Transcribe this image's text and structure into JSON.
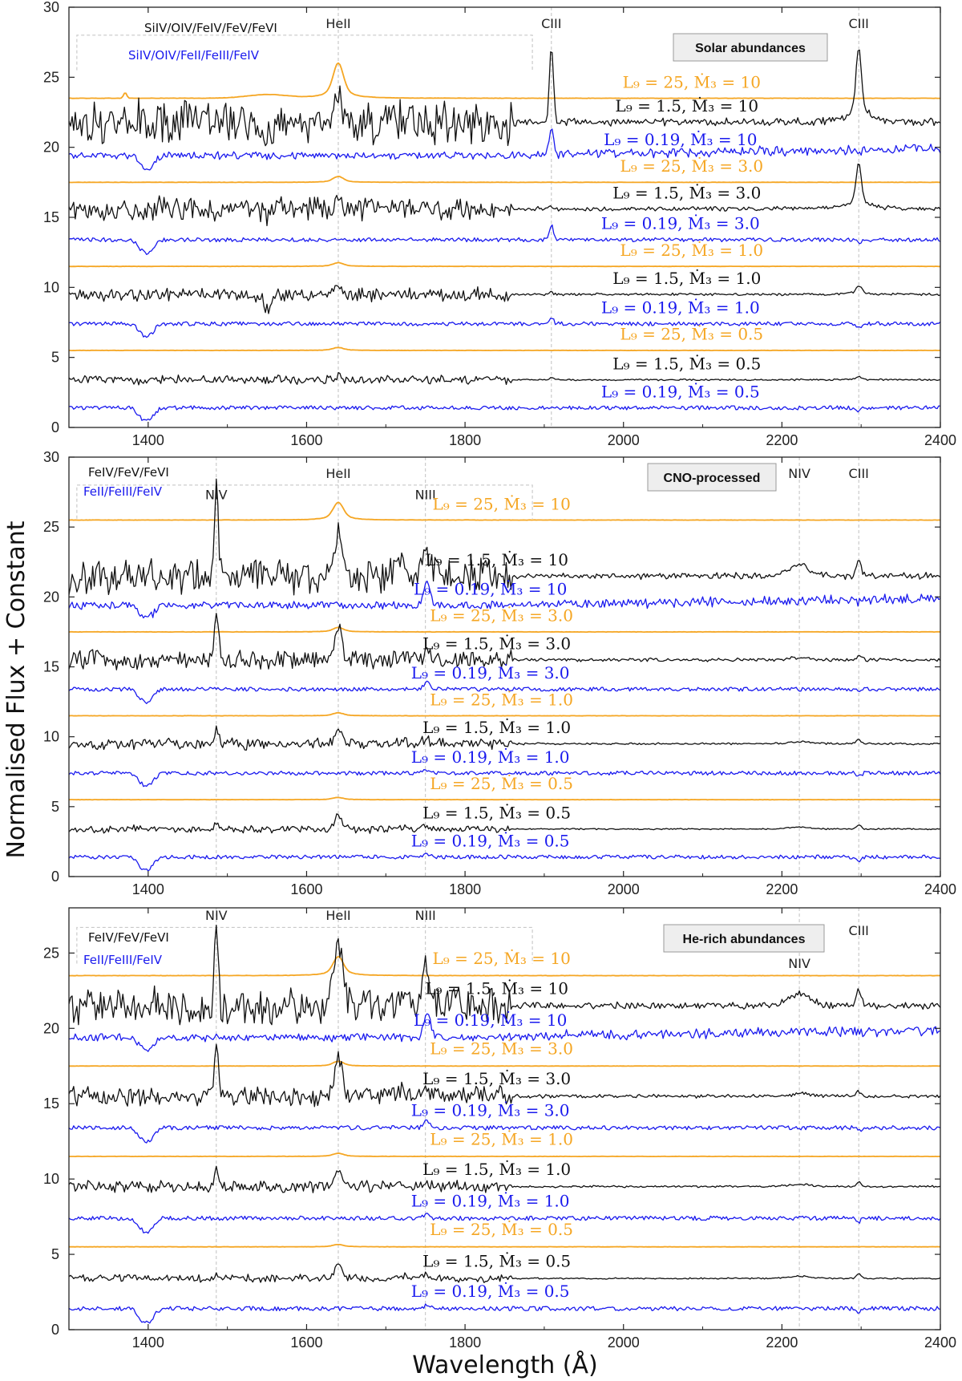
{
  "figure": {
    "ylabel": "Normalised Flux + Constant",
    "xlabel": "Wavelength (Å)"
  },
  "colors": {
    "L9_25": "#f5a623",
    "L9_1.5": "#111111",
    "L9_0.19": "#1a1aee",
    "guide": "#c0c0c0"
  },
  "chart_data": [
    {
      "type": "line",
      "title": "Solar abundances",
      "xlim": [
        1300,
        2400
      ],
      "ylim": [
        0,
        30
      ],
      "xticks": [
        1400,
        1600,
        1800,
        2000,
        2200,
        2400
      ],
      "yticks": [
        0,
        5,
        10,
        15,
        20,
        25,
        30
      ],
      "region_labels": [
        {
          "text": "SiIV/OIV/FeIV/FeV/FeVI",
          "color": "#111111"
        },
        {
          "text": "SiIV/OIV/FeII/FeIII/FeIV",
          "color": "#1a1aee"
        }
      ],
      "lines": [
        {
          "label": "HeII",
          "wavelength": 1640
        },
        {
          "label": "CIII",
          "wavelength": 1909
        },
        {
          "label": "CIII",
          "wavelength": 2297
        }
      ],
      "series": [
        {
          "name": "L9 = 25, Mdot3 = 10",
          "label": "L₉ = 25, Ṁ₃ = 10",
          "L9": 25,
          "Mdot3": 10,
          "offset": 23.5
        },
        {
          "name": "L9 = 1.5, Mdot3 = 10",
          "label": "L₉ = 1.5, Ṁ₃ = 10",
          "L9": 1.5,
          "Mdot3": 10,
          "offset": 21.8
        },
        {
          "name": "L9 = 0.19, Mdot3 = 10",
          "label": "L₉ = 0.19, Ṁ₃ = 10",
          "L9": 0.19,
          "Mdot3": 10,
          "offset": 19.4
        },
        {
          "name": "L9 = 25, Mdot3 = 3.0",
          "label": "L₉ = 25, Ṁ₃ = 3.0",
          "L9": 25,
          "Mdot3": 3.0,
          "offset": 17.5
        },
        {
          "name": "L9 = 1.5, Mdot3 = 3.0",
          "label": "L₉ = 1.5, Ṁ₃ = 3.0",
          "L9": 1.5,
          "Mdot3": 3.0,
          "offset": 15.6
        },
        {
          "name": "L9 = 0.19, Mdot3 = 3.0",
          "label": "L₉ = 0.19, Ṁ₃ = 3.0",
          "L9": 0.19,
          "Mdot3": 3.0,
          "offset": 13.4
        },
        {
          "name": "L9 = 25, Mdot3 = 1.0",
          "label": "L₉ = 25, Ṁ₃ = 1.0",
          "L9": 25,
          "Mdot3": 1.0,
          "offset": 11.5
        },
        {
          "name": "L9 = 1.5, Mdot3 = 1.0",
          "label": "L₉ = 1.5, Ṁ₃ = 1.0",
          "L9": 1.5,
          "Mdot3": 1.0,
          "offset": 9.5
        },
        {
          "name": "L9 = 0.19, Mdot3 = 1.0",
          "label": "L₉ = 0.19, Ṁ₃ = 1.0",
          "L9": 0.19,
          "Mdot3": 1.0,
          "offset": 7.4
        },
        {
          "name": "L9 = 25, Mdot3 = 0.5",
          "label": "L₉ = 25, Ṁ₃ = 0.5",
          "L9": 25,
          "Mdot3": 0.5,
          "offset": 5.5
        },
        {
          "name": "L9 = 1.5, Mdot3 = 0.5",
          "label": "L₉ = 1.5, Ṁ₃ = 0.5",
          "L9": 1.5,
          "Mdot3": 0.5,
          "offset": 3.4
        },
        {
          "name": "L9 = 0.19, Mdot3 = 0.5",
          "label": "L₉ = 0.19, Ṁ₃ = 0.5",
          "L9": 0.19,
          "Mdot3": 0.5,
          "offset": 1.4
        }
      ]
    },
    {
      "type": "line",
      "title": "CNO-processed",
      "xlim": [
        1300,
        2400
      ],
      "ylim": [
        0,
        30
      ],
      "xticks": [
        1400,
        1600,
        1800,
        2000,
        2200,
        2400
      ],
      "yticks": [
        0,
        5,
        10,
        15,
        20,
        25,
        30
      ],
      "region_labels": [
        {
          "text": "FeIV/FeV/FeVI",
          "color": "#111111"
        },
        {
          "text": "FeII/FeIII/FeIV",
          "color": "#1a1aee"
        }
      ],
      "lines": [
        {
          "label": "NIV",
          "wavelength": 1486
        },
        {
          "label": "HeII",
          "wavelength": 1640
        },
        {
          "label": "NIII",
          "wavelength": 1750
        },
        {
          "label": "NIV",
          "wavelength": 2222
        },
        {
          "label": "CIII",
          "wavelength": 2297
        }
      ],
      "series": [
        {
          "name": "L9 = 25, Mdot3 = 10",
          "label": "L₉ = 25, Ṁ₃ = 10",
          "L9": 25,
          "Mdot3": 10,
          "offset": 25.5
        },
        {
          "name": "L9 = 1.5, Mdot3 = 10",
          "label": "L₉ = 1.5, Ṁ₃ = 10",
          "L9": 1.5,
          "Mdot3": 10,
          "offset": 21.5
        },
        {
          "name": "L9 = 0.19, Mdot3 = 10",
          "label": "L₉ = 0.19, Ṁ₃ = 10",
          "L9": 0.19,
          "Mdot3": 10,
          "offset": 19.4
        },
        {
          "name": "L9 = 25, Mdot3 = 3.0",
          "label": "L₉ = 25, Ṁ₃ = 3.0",
          "L9": 25,
          "Mdot3": 3.0,
          "offset": 17.5
        },
        {
          "name": "L9 = 1.5, Mdot3 = 3.0",
          "label": "L₉ = 1.5, Ṁ₃ = 3.0",
          "L9": 1.5,
          "Mdot3": 3.0,
          "offset": 15.5
        },
        {
          "name": "L9 = 0.19, Mdot3 = 3.0",
          "label": "L₉ = 0.19, Ṁ₃ = 3.0",
          "L9": 0.19,
          "Mdot3": 3.0,
          "offset": 13.4
        },
        {
          "name": "L9 = 25, Mdot3 = 1.0",
          "label": "L₉ = 25, Ṁ₃ = 1.0",
          "L9": 25,
          "Mdot3": 1.0,
          "offset": 11.5
        },
        {
          "name": "L9 = 1.5, Mdot3 = 1.0",
          "label": "L₉ = 1.5, Ṁ₃ = 1.0",
          "L9": 1.5,
          "Mdot3": 1.0,
          "offset": 9.5
        },
        {
          "name": "L9 = 0.19, Mdot3 = 1.0",
          "label": "L₉ = 0.19, Ṁ₃ = 1.0",
          "L9": 0.19,
          "Mdot3": 1.0,
          "offset": 7.4
        },
        {
          "name": "L9 = 25, Mdot3 = 0.5",
          "label": "L₉ = 25, Ṁ₃ = 0.5",
          "L9": 25,
          "Mdot3": 0.5,
          "offset": 5.5
        },
        {
          "name": "L9 = 1.5, Mdot3 = 0.5",
          "label": "L₉ = 1.5, Ṁ₃ = 0.5",
          "L9": 1.5,
          "Mdot3": 0.5,
          "offset": 3.4
        },
        {
          "name": "L9 = 0.19, Mdot3 = 0.5",
          "label": "L₉ = 0.19, Ṁ₃ = 0.5",
          "L9": 0.19,
          "Mdot3": 0.5,
          "offset": 1.4
        }
      ]
    },
    {
      "type": "line",
      "title": "He-rich abundances",
      "xlim": [
        1300,
        2400
      ],
      "ylim": [
        0,
        28
      ],
      "xticks": [
        1400,
        1600,
        1800,
        2000,
        2200,
        2400
      ],
      "yticks": [
        0,
        5,
        10,
        15,
        20,
        25
      ],
      "region_labels": [
        {
          "text": "FeIV/FeV/FeVI",
          "color": "#111111"
        },
        {
          "text": "FeII/FeIII/FeIV",
          "color": "#1a1aee"
        }
      ],
      "lines": [
        {
          "label": "NIV",
          "wavelength": 1486
        },
        {
          "label": "HeII",
          "wavelength": 1640
        },
        {
          "label": "NIII",
          "wavelength": 1750
        },
        {
          "label": "NIV",
          "wavelength": 2222
        },
        {
          "label": "CIII",
          "wavelength": 2297
        }
      ],
      "series": [
        {
          "name": "L9 = 25, Mdot3 = 10",
          "label": "L₉ = 25, Ṁ₃ = 10",
          "L9": 25,
          "Mdot3": 10,
          "offset": 23.5
        },
        {
          "name": "L9 = 1.5, Mdot3 = 10",
          "label": "L₉ = 1.5, Ṁ₃ = 10",
          "L9": 1.5,
          "Mdot3": 10,
          "offset": 21.5
        },
        {
          "name": "L9 = 0.19, Mdot3 = 10",
          "label": "L₉ = 0.19, Ṁ₃ = 10",
          "L9": 0.19,
          "Mdot3": 10,
          "offset": 19.4
        },
        {
          "name": "L9 = 25, Mdot3 = 3.0",
          "label": "L₉ = 25, Ṁ₃ = 3.0",
          "L9": 25,
          "Mdot3": 3.0,
          "offset": 17.5
        },
        {
          "name": "L9 = 1.5, Mdot3 = 3.0",
          "label": "L₉ = 1.5, Ṁ₃ = 3.0",
          "L9": 1.5,
          "Mdot3": 3.0,
          "offset": 15.5
        },
        {
          "name": "L9 = 0.19, Mdot3 = 3.0",
          "label": "L₉ = 0.19, Ṁ₃ = 3.0",
          "L9": 0.19,
          "Mdot3": 3.0,
          "offset": 13.4
        },
        {
          "name": "L9 = 25, Mdot3 = 1.0",
          "label": "L₉ = 25, Ṁ₃ = 1.0",
          "L9": 25,
          "Mdot3": 1.0,
          "offset": 11.5
        },
        {
          "name": "L9 = 1.5, Mdot3 = 1.0",
          "label": "L₉ = 1.5, Ṁ₃ = 1.0",
          "L9": 1.5,
          "Mdot3": 1.0,
          "offset": 9.5
        },
        {
          "name": "L9 = 0.19, Mdot3 = 1.0",
          "label": "L₉ = 0.19, Ṁ₃ = 1.0",
          "L9": 0.19,
          "Mdot3": 1.0,
          "offset": 7.4
        },
        {
          "name": "L9 = 25, Mdot3 = 0.5",
          "label": "L₉ = 25, Ṁ₃ = 0.5",
          "L9": 25,
          "Mdot3": 0.5,
          "offset": 5.5
        },
        {
          "name": "L9 = 1.5, Mdot3 = 0.5",
          "label": "L₉ = 1.5, Ṁ₃ = 0.5",
          "L9": 1.5,
          "Mdot3": 0.5,
          "offset": 3.4
        },
        {
          "name": "L9 = 0.19, Mdot3 = 0.5",
          "label": "L₉ = 0.19, Ṁ₃ = 0.5",
          "L9": 0.19,
          "Mdot3": 0.5,
          "offset": 1.4
        }
      ]
    }
  ]
}
